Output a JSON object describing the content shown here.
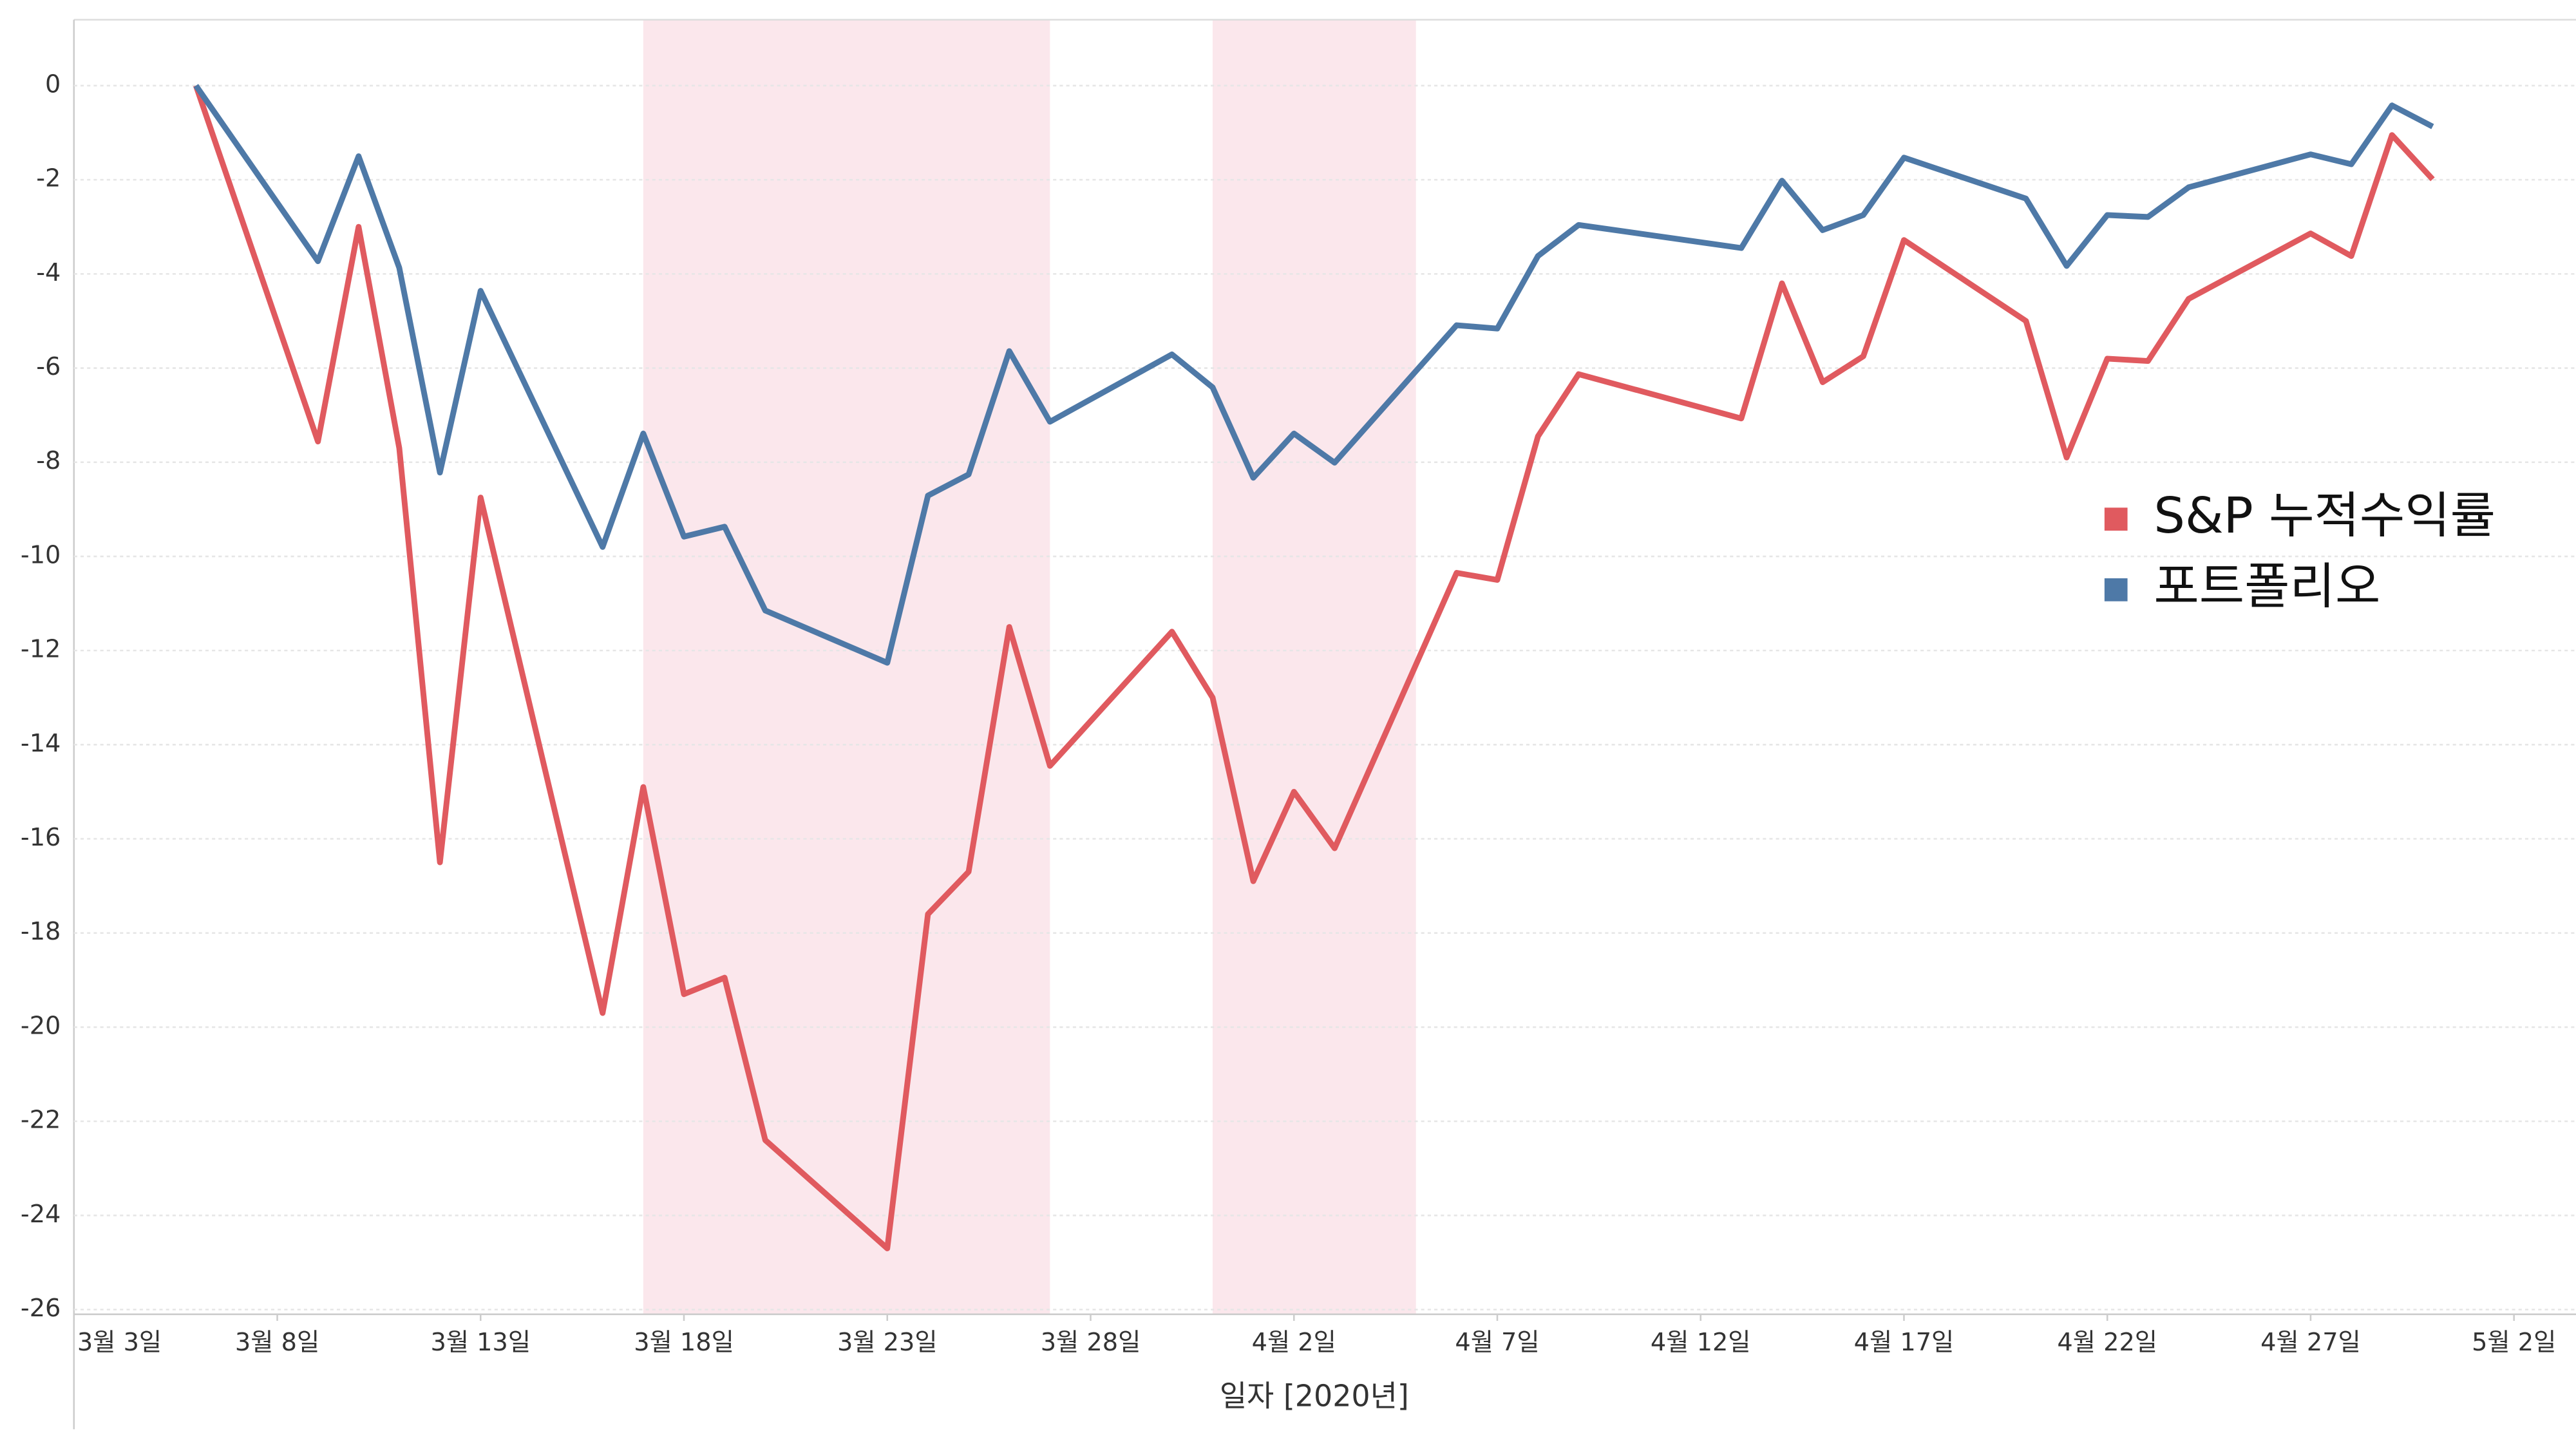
{
  "chart_data": {
    "type": "line",
    "xlabel": "일자 [2020년]",
    "x": [
      "2020-03-06",
      "2020-03-09",
      "2020-03-10",
      "2020-03-11",
      "2020-03-12",
      "2020-03-13",
      "2020-03-16",
      "2020-03-17",
      "2020-03-18",
      "2020-03-19",
      "2020-03-20",
      "2020-03-23",
      "2020-03-24",
      "2020-03-25",
      "2020-03-26",
      "2020-03-27",
      "2020-03-30",
      "2020-03-31",
      "2020-04-01",
      "2020-04-02",
      "2020-04-03",
      "2020-04-06",
      "2020-04-07",
      "2020-04-08",
      "2020-04-09",
      "2020-04-13",
      "2020-04-14",
      "2020-04-15",
      "2020-04-16",
      "2020-04-17",
      "2020-04-20",
      "2020-04-21",
      "2020-04-22",
      "2020-04-23",
      "2020-04-24",
      "2020-04-27",
      "2020-04-28",
      "2020-04-29",
      "2020-04-30"
    ],
    "series": [
      {
        "name": "S&P 누적수익률",
        "color": "#e05a5f",
        "values": [
          0,
          -7.56,
          -3.0,
          -7.7,
          -16.5,
          -8.75,
          -19.7,
          -14.9,
          -19.3,
          -18.95,
          -22.4,
          -24.7,
          -17.6,
          -16.7,
          -11.5,
          -14.45,
          -11.6,
          -13.0,
          -16.9,
          -15.0,
          -16.2,
          -10.35,
          -10.5,
          -7.45,
          -6.13,
          -7.07,
          -4.2,
          -6.3,
          -5.75,
          -3.28,
          -5.0,
          -7.9,
          -5.8,
          -5.85,
          -4.53,
          -3.14,
          -3.62,
          -1.05,
          -1.99
        ]
      },
      {
        "name": "포트폴리오",
        "color": "#4e79a7",
        "values": [
          0,
          -3.73,
          -1.5,
          -3.87,
          -8.22,
          -4.36,
          -9.8,
          -7.39,
          -9.58,
          -9.37,
          -11.15,
          -12.26,
          -8.71,
          -8.26,
          -5.64,
          -7.14,
          -5.71,
          -6.41,
          -8.33,
          -7.39,
          -8.01,
          -5.09,
          -5.16,
          -3.62,
          -2.96,
          -3.45,
          -2.02,
          -3.07,
          -2.75,
          -1.53,
          -2.4,
          -3.83,
          -2.75,
          -2.79,
          -2.16,
          -1.46,
          -1.67,
          -0.42,
          -0.87
        ]
      }
    ],
    "xlim": [
      "2020-03-03",
      "2020-05-03"
    ],
    "xticks": [
      {
        "value": "2020-03-03",
        "label": "3월 3일"
      },
      {
        "value": "2020-03-08",
        "label": "3월 8일"
      },
      {
        "value": "2020-03-13",
        "label": "3월 13일"
      },
      {
        "value": "2020-03-18",
        "label": "3월 18일"
      },
      {
        "value": "2020-03-23",
        "label": "3월 23일"
      },
      {
        "value": "2020-03-28",
        "label": "3월 28일"
      },
      {
        "value": "2020-04-02",
        "label": "4월 2일"
      },
      {
        "value": "2020-04-07",
        "label": "4월 7일"
      },
      {
        "value": "2020-04-12",
        "label": "4월 12일"
      },
      {
        "value": "2020-04-17",
        "label": "4월 17일"
      },
      {
        "value": "2020-04-22",
        "label": "4월 22일"
      },
      {
        "value": "2020-04-27",
        "label": "4월 27일"
      },
      {
        "value": "2020-05-02",
        "label": "5월 2일"
      }
    ],
    "ylim": [
      -26.1,
      1.4
    ],
    "yticks": [
      0,
      -2,
      -4,
      -6,
      -8,
      -10,
      -12,
      -14,
      -16,
      -18,
      -20,
      -22,
      -24,
      -26
    ],
    "grid": true,
    "legend": "right",
    "shaded_ranges": [
      [
        "2020-03-17",
        "2020-03-27"
      ],
      [
        "2020-03-31",
        "2020-04-05"
      ]
    ],
    "shade_color": "#fbe7ec"
  }
}
